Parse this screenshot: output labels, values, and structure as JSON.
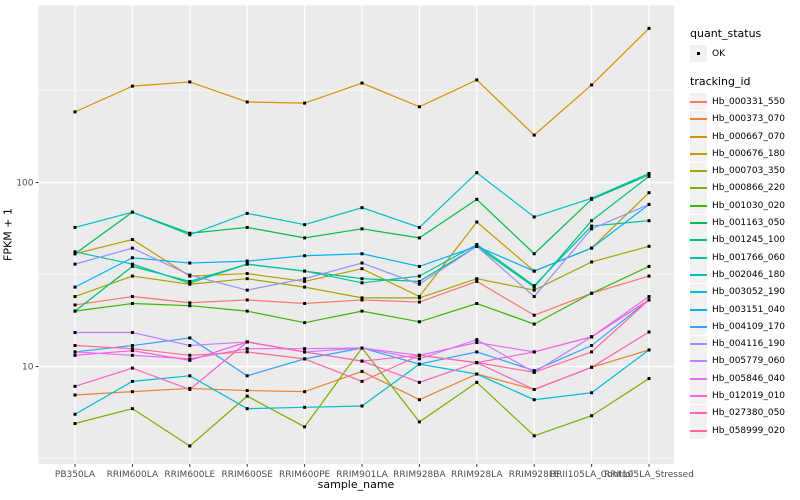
{
  "figure": {
    "background": "#FFFFFF",
    "panel_background": "#EBEBEB",
    "grid_color": "#FFFFFF",
    "tick_text_color": "#4D4D4D",
    "point_color": "#000000"
  },
  "axes": {
    "y_title": "FPKM + 1",
    "x_title": "sample_name",
    "y_tick_labels": [
      "100",
      "10"
    ]
  },
  "legend": {
    "quant_status_title": "quant_status",
    "quant_status_items": [
      {
        "label": "OK",
        "marker": "black-point"
      }
    ],
    "tracking_id_title": "tracking_id"
  },
  "chart_data": {
    "type": "line",
    "title": "",
    "xlabel": "sample_name",
    "ylabel": "FPKM + 1",
    "y_scale": "log10",
    "y_ticks": [
      10,
      100
    ],
    "ylim": [
      3.2,
      900
    ],
    "grid": true,
    "legend_position": "right",
    "marker": "small-black-point",
    "categories": [
      "PB350LA",
      "RRIM600LA",
      "RRIM600LE",
      "RRIM600SE",
      "RRIM600PE",
      "RRIM901LA",
      "RRIM928BA",
      "RRIM928LA",
      "RRIM928LE",
      "RRII105LA_Control",
      "RRII105LA_Stressed"
    ],
    "series": [
      {
        "name": "Hb_000331_550",
        "color": "#F8766D",
        "values": [
          21.6,
          24,
          22.2,
          23,
          22,
          23,
          22.4,
          29,
          19,
          25,
          31
        ]
      },
      {
        "name": "Hb_000373_070",
        "color": "#EA8331",
        "values": [
          7.0,
          7.3,
          7.6,
          7.4,
          7.3,
          9.4,
          6.6,
          9.1,
          7.5,
          9.9,
          12.3
        ]
      },
      {
        "name": "Hb_000667_070",
        "color": "#D89000",
        "values": [
          242,
          334,
          352,
          274,
          270,
          347,
          258,
          361,
          181,
          339,
          688
        ]
      },
      {
        "name": "Hb_000676_180",
        "color": "#C09B00",
        "values": [
          41,
          49,
          31,
          32,
          29,
          34,
          24,
          61,
          33,
          44,
          88
        ]
      },
      {
        "name": "Hb_000703_350",
        "color": "#A3A500",
        "values": [
          24,
          31,
          28,
          30,
          27,
          23.6,
          23.6,
          30,
          26,
          37,
          45
        ]
      },
      {
        "name": "Hb_000866_220",
        "color": "#7CAE00",
        "values": [
          4.9,
          5.9,
          3.7,
          6.9,
          4.7,
          12.6,
          5.0,
          8.2,
          4.2,
          5.4,
          8.6
        ]
      },
      {
        "name": "Hb_001030_020",
        "color": "#39B600",
        "values": [
          20,
          22,
          21.4,
          20,
          17.3,
          20,
          17.5,
          22,
          17,
          25,
          35
        ]
      },
      {
        "name": "Hb_001163_050",
        "color": "#00BB4E",
        "values": [
          41,
          69,
          53,
          57,
          50,
          56,
          50,
          81,
          41,
          81,
          110
        ]
      },
      {
        "name": "Hb_001245_100",
        "color": "#00BF7D",
        "values": [
          20,
          35,
          29,
          36,
          33,
          30,
          29,
          45,
          27,
          62,
          108
        ]
      },
      {
        "name": "Hb_001766_060",
        "color": "#00C1A3",
        "values": [
          42,
          36,
          28.4,
          36,
          33,
          28.5,
          31,
          46,
          27.5,
          58,
          62
        ]
      },
      {
        "name": "Hb_002046_180",
        "color": "#00BFC4",
        "values": [
          57,
          69,
          52,
          68,
          59,
          73,
          57,
          113,
          65,
          82,
          112
        ]
      },
      {
        "name": "Hb_003052_190",
        "color": "#00BBDA",
        "values": [
          5.5,
          8.3,
          8.9,
          5.9,
          6.0,
          6.1,
          10.3,
          9.1,
          6.6,
          7.2,
          12.3
        ]
      },
      {
        "name": "Hb_003151_040",
        "color": "#00B0F6",
        "values": [
          27,
          39,
          36.5,
          37.4,
          40,
          41,
          35,
          45,
          33,
          44,
          76
        ]
      },
      {
        "name": "Hb_004109_170",
        "color": "#35A2FF",
        "values": [
          12,
          13,
          14.3,
          8.9,
          11,
          12.6,
          10.3,
          12,
          9.5,
          13,
          23
        ]
      },
      {
        "name": "Hb_004116_190",
        "color": "#9590FF",
        "values": [
          36,
          44,
          31.4,
          26,
          30,
          36.5,
          28,
          45,
          24,
          56,
          76
        ]
      },
      {
        "name": "Hb_005779_060",
        "color": "#C77CFF",
        "values": [
          15.3,
          15.3,
          13,
          13.6,
          12,
          12.6,
          11,
          14,
          9.3,
          14.5,
          23
        ]
      },
      {
        "name": "Hb_005846_040",
        "color": "#E76BF3",
        "values": [
          12,
          11.5,
          11,
          12.5,
          12.5,
          12.6,
          11.5,
          13.5,
          12,
          14.5,
          24
        ]
      },
      {
        "name": "Hb_012019_010",
        "color": "#FA62DB",
        "values": [
          11.5,
          12.2,
          10.8,
          13.6,
          12,
          10.7,
          11.5,
          10.5,
          12,
          14.5,
          23
        ]
      },
      {
        "name": "Hb_027380_050",
        "color": "#FF62BC",
        "values": [
          7.8,
          9.8,
          7.5,
          13.6,
          12,
          10.7,
          8.2,
          10.5,
          7.5,
          9.9,
          15.4
        ]
      },
      {
        "name": "Hb_058999_020",
        "color": "#FF6A98",
        "values": [
          13,
          12.5,
          11.5,
          12,
          11,
          8.3,
          11.5,
          10.5,
          9.3,
          12,
          23
        ]
      }
    ]
  }
}
